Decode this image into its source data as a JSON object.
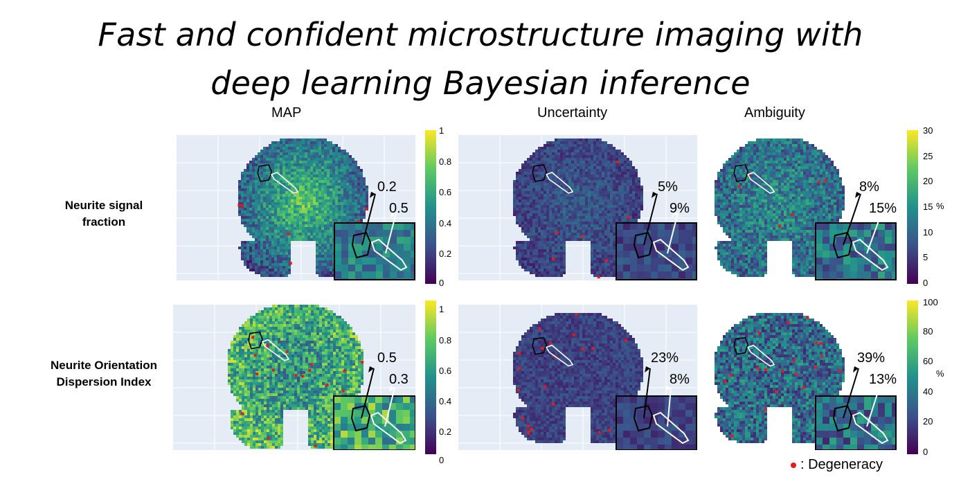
{
  "title": {
    "line1": "Fast and confident microstructure imaging with",
    "line2": "deep learning Bayesian inference"
  },
  "columns": {
    "map": "MAP",
    "uncertainty": "Uncertainty",
    "ambiguity": "Ambiguity"
  },
  "rows": {
    "nsf": {
      "line1": "Neurite signal",
      "line2": "fraction"
    },
    "odi": {
      "line1": "Neurite Orientation",
      "line2": "Dispersion Index"
    }
  },
  "colorbars": {
    "map_top": {
      "ticks": [
        "1",
        "0.8",
        "0.6",
        "0.4",
        "0.2",
        "0"
      ],
      "unit": ""
    },
    "right_top": {
      "ticks": [
        "30",
        "25",
        "20",
        "15",
        "10",
        "5",
        "0"
      ],
      "unit": "%"
    },
    "map_bottom": {
      "ticks": [
        "1",
        "0.8",
        "0.6",
        "0.4",
        "0.2",
        "0"
      ],
      "unit": ""
    },
    "right_bottom": {
      "ticks": [
        "100",
        "80",
        "60",
        "40",
        "20",
        "0"
      ],
      "unit": "%"
    }
  },
  "annotations": {
    "nsf_map": [
      "0.2",
      "0.5"
    ],
    "nsf_unc": [
      "5%",
      "9%"
    ],
    "nsf_amb": [
      "8%",
      "15%"
    ],
    "odi_map": [
      "0.5",
      "0.3"
    ],
    "odi_unc": [
      "23%",
      "8%"
    ],
    "odi_amb": [
      "39%",
      "13%"
    ]
  },
  "legend": {
    "label": ": Degeneracy",
    "color": "#e41a1c"
  },
  "colors": {
    "panel_bg": "#e5ecf6",
    "viridis": [
      "#440154",
      "#3b528b",
      "#21918c",
      "#5ec962",
      "#fde725"
    ]
  }
}
